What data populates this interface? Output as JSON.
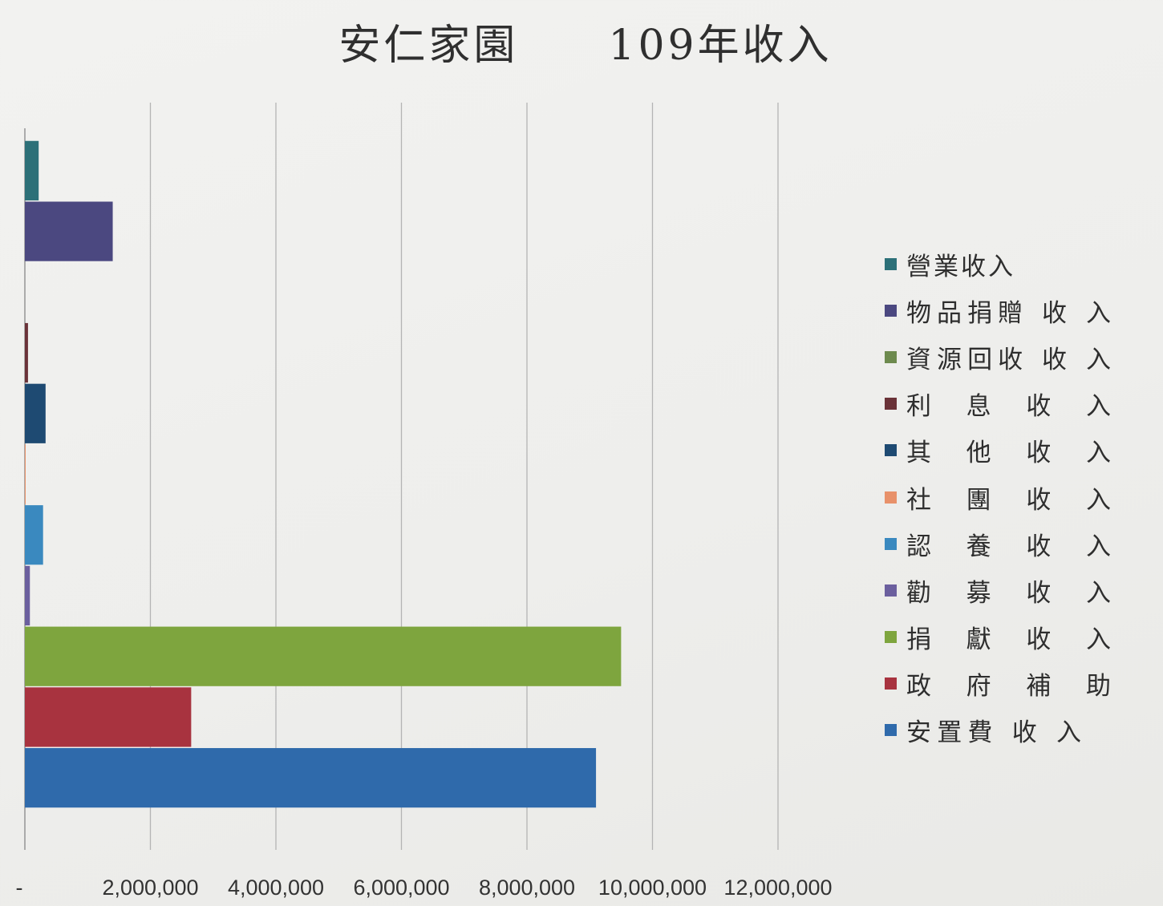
{
  "chart_data": {
    "type": "bar",
    "orientation": "horizontal",
    "title": "安仁家園　　109年收入",
    "xlabel": "",
    "ylabel": "",
    "xlim": [
      0,
      12000000
    ],
    "x_ticks": [
      0,
      2000000,
      4000000,
      6000000,
      8000000,
      10000000,
      12000000
    ],
    "x_tick_labels": [
      "-",
      "2,000,000",
      "4,000,000",
      "6,000,000",
      "8,000,000",
      "10,000,000",
      "12,000,000"
    ],
    "grid": "vertical",
    "legend_position": "right",
    "series": [
      {
        "name": "營業收入",
        "value": 220000,
        "color": "#2c7078"
      },
      {
        "name": "物品捐贈 收 入",
        "value": 1400000,
        "color": "#4b4880"
      },
      {
        "name": "資源回收 收 入",
        "value": 0,
        "color": "#6d8a4e"
      },
      {
        "name": "利　息　收　入",
        "value": 50000,
        "color": "#6a3238"
      },
      {
        "name": "其　他　收　入",
        "value": 330000,
        "color": "#1e4a72"
      },
      {
        "name": "社　團　收　入",
        "value": 10000,
        "color": "#e8916a"
      },
      {
        "name": "認　養　收　入",
        "value": 290000,
        "color": "#3a89bf"
      },
      {
        "name": "勸　募　收　入",
        "value": 80000,
        "color": "#6b5f9e"
      },
      {
        "name": "捐　獻　收　入",
        "value": 9500000,
        "color": "#7ea53e"
      },
      {
        "name": "政　府　補　助",
        "value": 2650000,
        "color": "#a8333f"
      },
      {
        "name": "安置費 收 入",
        "value": 9100000,
        "color": "#2f6aab"
      }
    ]
  }
}
